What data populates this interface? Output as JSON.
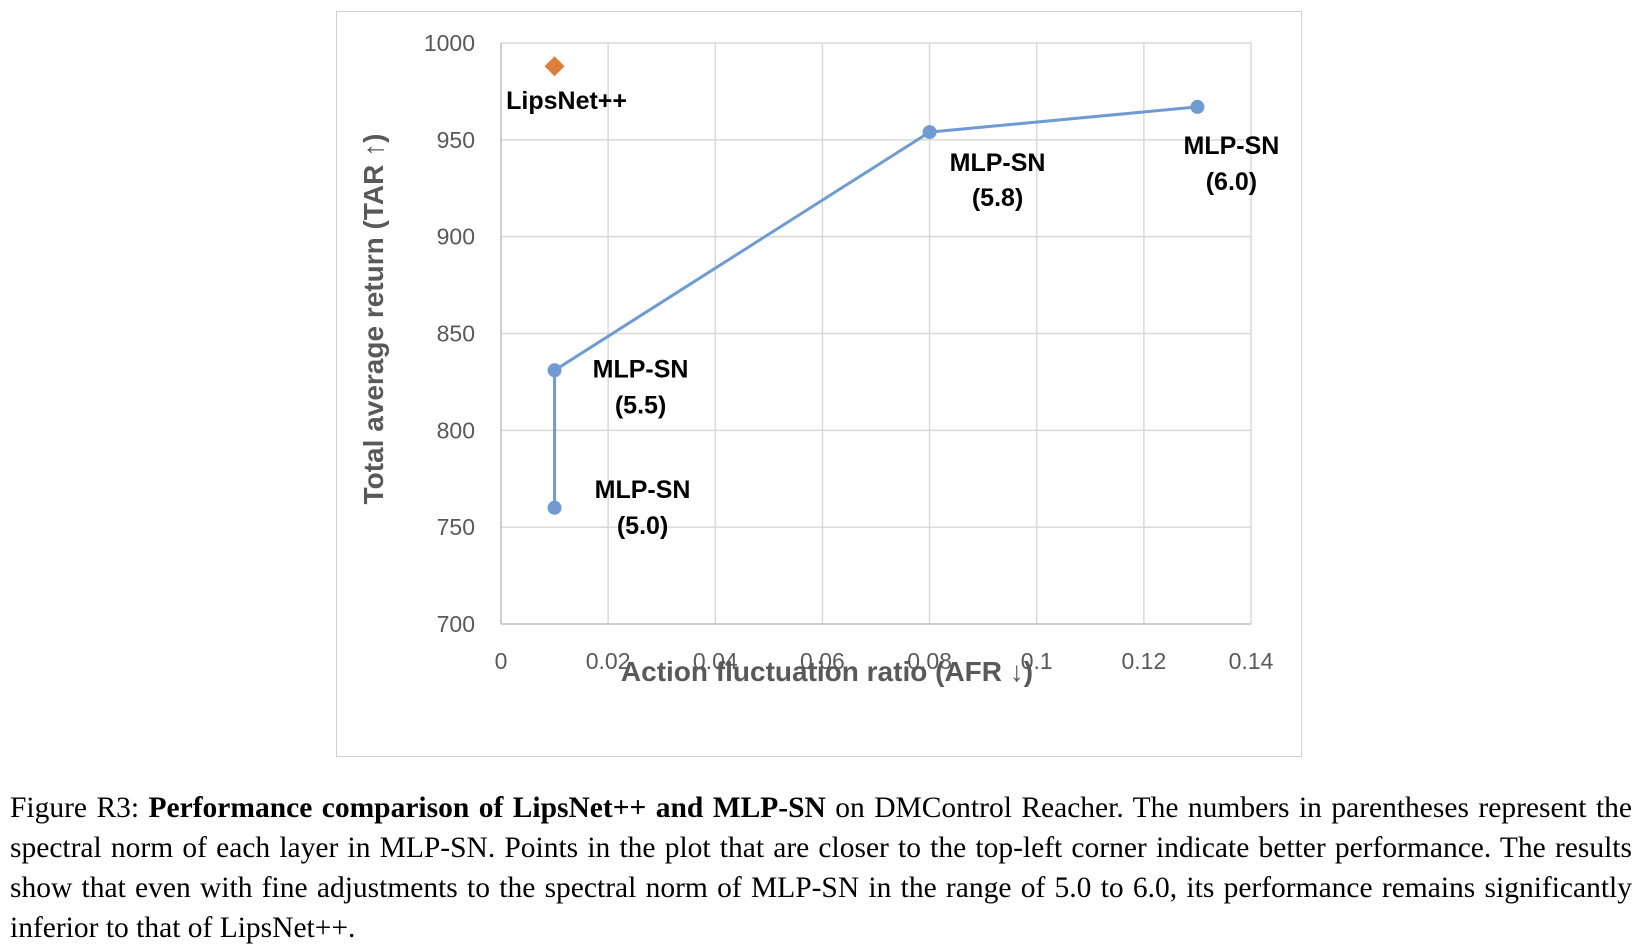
{
  "chart_data": {
    "type": "line",
    "title": "",
    "xlabel": "Action fluctuation ratio (AFR ↓)",
    "ylabel": "Total average return (TAR ↑)",
    "xlim": [
      0,
      0.14
    ],
    "ylim": [
      700,
      1000
    ],
    "x_ticks": [
      0,
      0.02,
      0.04,
      0.06,
      0.08,
      0.1,
      0.12,
      0.14
    ],
    "x_tick_labels": [
      "0",
      "0.02",
      "0.04",
      "0.06",
      "0.08",
      "0.1",
      "0.12",
      "0.14"
    ],
    "y_ticks": [
      700,
      750,
      800,
      850,
      900,
      950,
      1000
    ],
    "y_tick_labels": [
      "700",
      "750",
      "800",
      "850",
      "900",
      "950",
      "1000"
    ],
    "grid": true,
    "series": [
      {
        "marker": "circle",
        "color": "#6f9bd4",
        "points": [
          {
            "x": 0.01,
            "y": 760,
            "label_line1": "MLP-SN",
            "label_line2": "(5.0)"
          },
          {
            "x": 0.01,
            "y": 831,
            "label_line1": "MLP-SN",
            "label_line2": "(5.5)"
          },
          {
            "x": 0.08,
            "y": 954,
            "label_line1": "MLP-SN",
            "label_line2": "(5.8)"
          },
          {
            "x": 0.13,
            "y": 967,
            "label_line1": "MLP-SN",
            "label_line2": "(6.0)"
          }
        ]
      },
      {
        "marker": "diamond",
        "color": "#dd7f3a",
        "points": [
          {
            "x": 0.01,
            "y": 988,
            "label_line1": "LipsNet++",
            "label_line2": ""
          }
        ]
      }
    ]
  },
  "caption": {
    "prefix": "Figure R3: ",
    "bold": "Performance comparison of LipsNet++ and MLP-SN",
    "rest": " on DMControl Reacher. The numbers in parentheses represent the spectral norm of each layer in MLP-SN. Points in the plot that are closer to the top-left corner indicate better performance. The results show that even with fine adjustments to the spectral norm of MLP-SN in the range of 5.0 to 6.0, its performance remains significantly inferior to that of LipsNet++."
  }
}
